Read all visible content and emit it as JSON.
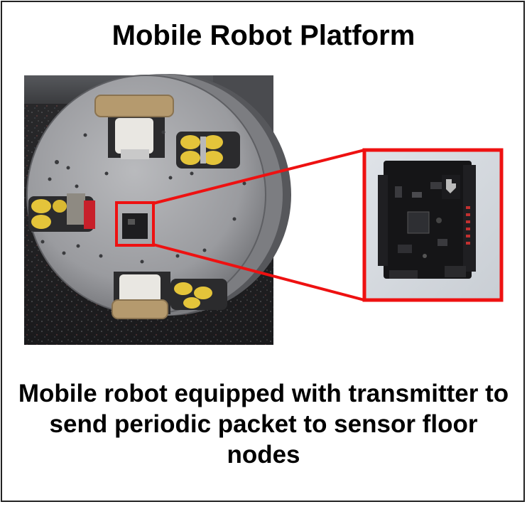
{
  "title": "Mobile Robot Platform",
  "caption": "Mobile robot equipped with transmitter to send periodic packet to sensor floor nodes",
  "colors": {
    "highlight": "#ee1111",
    "frame": "#222222",
    "background": "#ffffff"
  },
  "images": {
    "robot": "photo-of-round-mobile-robot-with-omni-wheels",
    "module": "photo-of-transmitter-circuit-board"
  }
}
